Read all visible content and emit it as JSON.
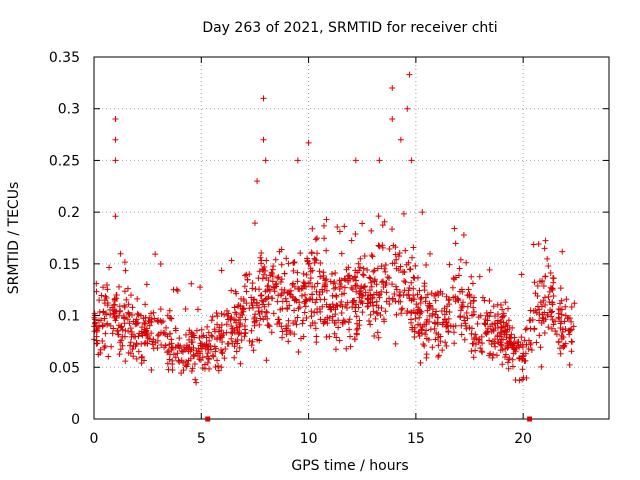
{
  "chart_data": {
    "type": "scatter",
    "title": "Day 263 of 2021, SRMTID for receiver chti",
    "xlabel": "GPS time / hours",
    "ylabel": "SRMTID / TECUs",
    "xlim": [
      0,
      24
    ],
    "ylim": [
      0,
      0.35
    ],
    "x_ticks": [
      0,
      5,
      10,
      15,
      20
    ],
    "y_ticks": [
      0,
      0.05,
      0.1,
      0.15,
      0.2,
      0.25,
      0.3,
      0.35
    ],
    "x_tick_labels": [
      "0",
      "5",
      "10",
      "15",
      "20"
    ],
    "y_tick_labels": [
      "0",
      "0.05",
      "0.1",
      "0.15",
      "0.2",
      "0.25",
      "0.3",
      "0.35"
    ],
    "grid": true,
    "legend": "none",
    "marker": "+",
    "color": "#dd0000",
    "series": [
      {
        "values_hourly_profile": [
          {
            "x": 0.0,
            "y": 0.09
          },
          {
            "x": 1.0,
            "y": 0.1
          },
          {
            "x": 2.0,
            "y": 0.085
          },
          {
            "x": 3.0,
            "y": 0.08
          },
          {
            "x": 4.0,
            "y": 0.065
          },
          {
            "x": 5.0,
            "y": 0.07
          },
          {
            "x": 6.0,
            "y": 0.08
          },
          {
            "x": 7.0,
            "y": 0.1
          },
          {
            "x": 8.0,
            "y": 0.12
          },
          {
            "x": 9.0,
            "y": 0.11
          },
          {
            "x": 10.0,
            "y": 0.13
          },
          {
            "x": 11.0,
            "y": 0.11
          },
          {
            "x": 12.0,
            "y": 0.11
          },
          {
            "x": 13.0,
            "y": 0.12
          },
          {
            "x": 14.0,
            "y": 0.14
          },
          {
            "x": 15.0,
            "y": 0.1
          },
          {
            "x": 16.0,
            "y": 0.09
          },
          {
            "x": 17.0,
            "y": 0.11
          },
          {
            "x": 18.0,
            "y": 0.09
          },
          {
            "x": 19.0,
            "y": 0.08
          },
          {
            "x": 20.0,
            "y": 0.06
          },
          {
            "x": 21.0,
            "y": 0.12
          },
          {
            "x": 22.0,
            "y": 0.09
          },
          {
            "x": 22.4,
            "y": 0.09
          }
        ],
        "peak_points": [
          {
            "x": 1.0,
            "y": 0.29
          },
          {
            "x": 1.0,
            "y": 0.27
          },
          {
            "x": 1.0,
            "y": 0.25
          },
          {
            "x": 1.0,
            "y": 0.196
          },
          {
            "x": 7.9,
            "y": 0.31
          },
          {
            "x": 7.9,
            "y": 0.27
          },
          {
            "x": 8.0,
            "y": 0.25
          },
          {
            "x": 7.6,
            "y": 0.23
          },
          {
            "x": 9.5,
            "y": 0.25
          },
          {
            "x": 10.0,
            "y": 0.267
          },
          {
            "x": 12.2,
            "y": 0.25
          },
          {
            "x": 13.9,
            "y": 0.32
          },
          {
            "x": 13.9,
            "y": 0.29
          },
          {
            "x": 14.7,
            "y": 0.333
          },
          {
            "x": 14.6,
            "y": 0.3
          },
          {
            "x": 14.3,
            "y": 0.27
          },
          {
            "x": 14.8,
            "y": 0.25
          },
          {
            "x": 13.3,
            "y": 0.25
          },
          {
            "x": 15.3,
            "y": 0.2
          },
          {
            "x": 21.0,
            "y": 0.165
          }
        ]
      }
    ],
    "axis_markers_x": [
      5.3,
      20.3
    ]
  }
}
